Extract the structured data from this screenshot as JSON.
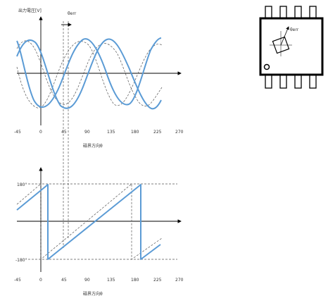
{
  "top_chart": {
    "ylabel": "出力電圧[V]",
    "xlabel": "磁界方向θ",
    "error_label": "θerr",
    "xticks": [
      "-45",
      "0",
      "45",
      "90",
      "135",
      "180",
      "225",
      "270"
    ]
  },
  "bottom_chart": {
    "xlabel": "磁界方向θ",
    "y_top_label": "180°",
    "y_bottom_label": "-180°",
    "xticks": [
      "-45",
      "0",
      "45",
      "90",
      "135",
      "180",
      "225",
      "270"
    ]
  },
  "package": {
    "angle_label": "θerr",
    "pin_count_per_side": 4
  },
  "colors": {
    "signal": "#5b9bd5",
    "reference": "#555555"
  }
}
